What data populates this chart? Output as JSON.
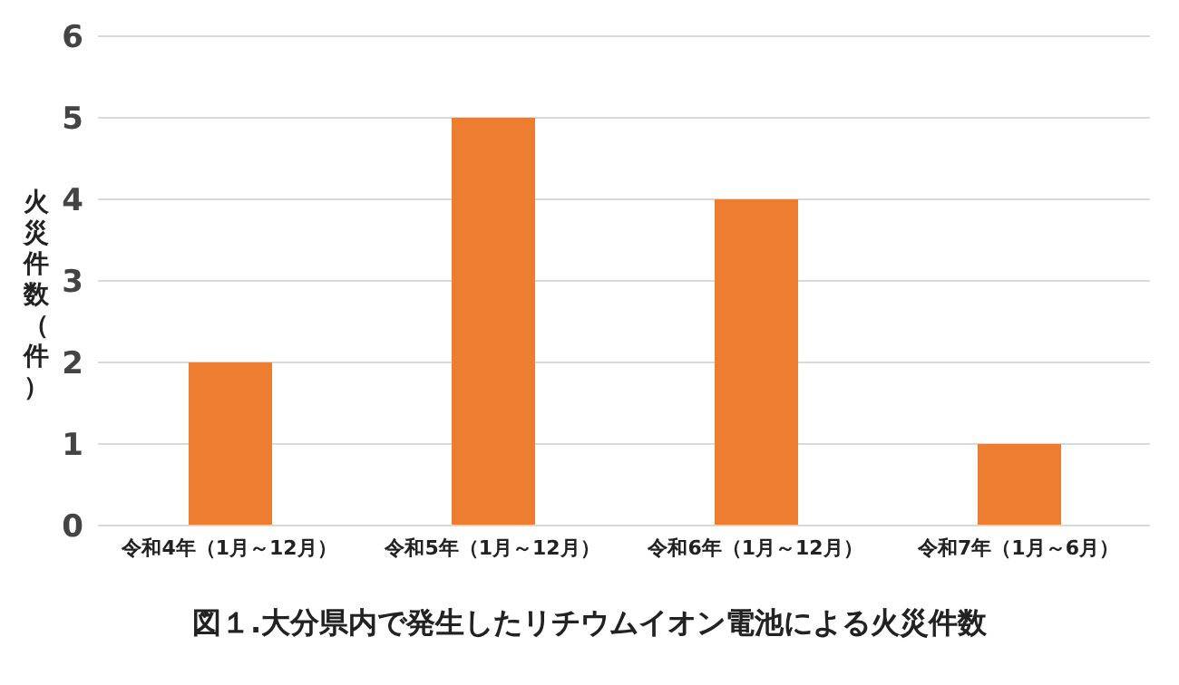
{
  "chart_data": {
    "type": "bar",
    "title": "図１.大分県内で発生したリチウムイオン電池による火災件数",
    "ylabel": "火災件数（件）",
    "categories": [
      "令和4年（1月～12月）",
      "令和5年（1月～12月）",
      "令和6年（1月～12月）",
      "令和7年（1月～6月）"
    ],
    "values": [
      2,
      5,
      4,
      1
    ],
    "color": "#ed7d31",
    "ylim": [
      0,
      6
    ],
    "yticks": [
      0,
      1,
      2,
      3,
      4,
      5,
      6
    ],
    "grid": "y"
  }
}
